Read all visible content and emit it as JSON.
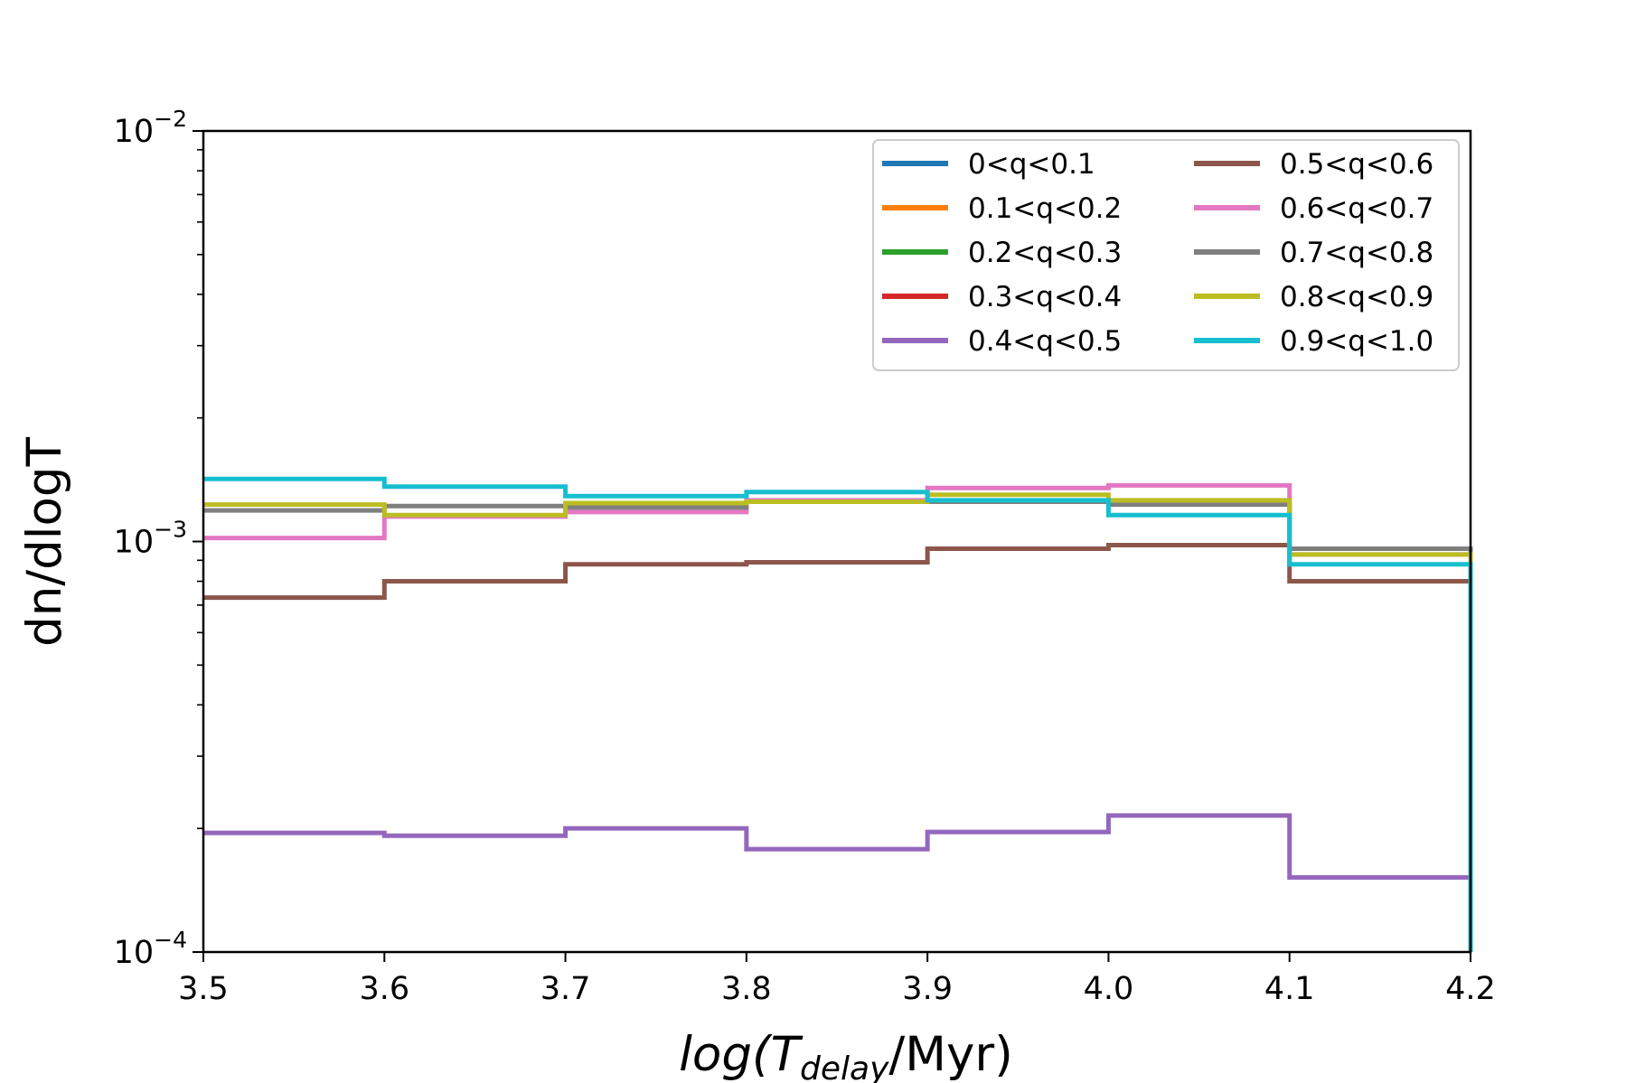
{
  "chart_data": {
    "type": "step",
    "xlabel": {
      "prefix": "log(",
      "var": "T",
      "sub": "delay",
      "suffix": "/Myr)"
    },
    "ylabel": "dn/dlogT",
    "xlim": [
      3.5,
      4.2
    ],
    "ylim": [
      0.0001,
      0.01
    ],
    "yscale": "log",
    "x_ticks": [
      "3.5",
      "3.6",
      "3.7",
      "3.8",
      "3.9",
      "4.0",
      "4.1",
      "4.2"
    ],
    "y_ticks": [
      {
        "value": 0.01,
        "base": "10",
        "exp": "−2"
      },
      {
        "value": 0.001,
        "base": "10",
        "exp": "−3"
      },
      {
        "value": 0.0001,
        "base": "10",
        "exp": "−4"
      }
    ],
    "legend_position": "top-right",
    "bin_edges": [
      3.5,
      3.6,
      3.7,
      3.8,
      3.9,
      4.0,
      4.1,
      4.2
    ],
    "series": [
      {
        "name": "0<q<0.1",
        "color": "#1f77b4",
        "values": []
      },
      {
        "name": "0.1<q<0.2",
        "color": "#ff7f0e",
        "values": []
      },
      {
        "name": "0.2<q<0.3",
        "color": "#2ca02c",
        "values": []
      },
      {
        "name": "0.3<q<0.4",
        "color": "#d62728",
        "values": []
      },
      {
        "name": "0.4<q<0.5",
        "color": "#9467bd",
        "values": [
          0.000195,
          0.000192,
          0.0002,
          0.000178,
          0.000196,
          0.000215,
          0.000152
        ]
      },
      {
        "name": "0.5<q<0.6",
        "color": "#8c564b",
        "values": [
          0.00073,
          0.0008,
          0.00088,
          0.00089,
          0.00096,
          0.00098,
          0.0008
        ]
      },
      {
        "name": "0.6<q<0.7",
        "color": "#e377c2",
        "values": [
          0.00102,
          0.00115,
          0.00118,
          0.00126,
          0.00135,
          0.00137,
          0.00093
        ]
      },
      {
        "name": "0.7<q<0.8",
        "color": "#7f7f7f",
        "values": [
          0.00119,
          0.00122,
          0.00121,
          0.00125,
          0.00125,
          0.00123,
          0.00096
        ]
      },
      {
        "name": "0.8<q<0.9",
        "color": "#bcbd22",
        "values": [
          0.00123,
          0.00116,
          0.00124,
          0.00125,
          0.0013,
          0.00126,
          0.00093
        ]
      },
      {
        "name": "0.9<q<1.0",
        "color": "#17becf",
        "values": [
          0.00142,
          0.00136,
          0.00129,
          0.00132,
          0.00126,
          0.00116,
          0.00088
        ]
      }
    ]
  }
}
